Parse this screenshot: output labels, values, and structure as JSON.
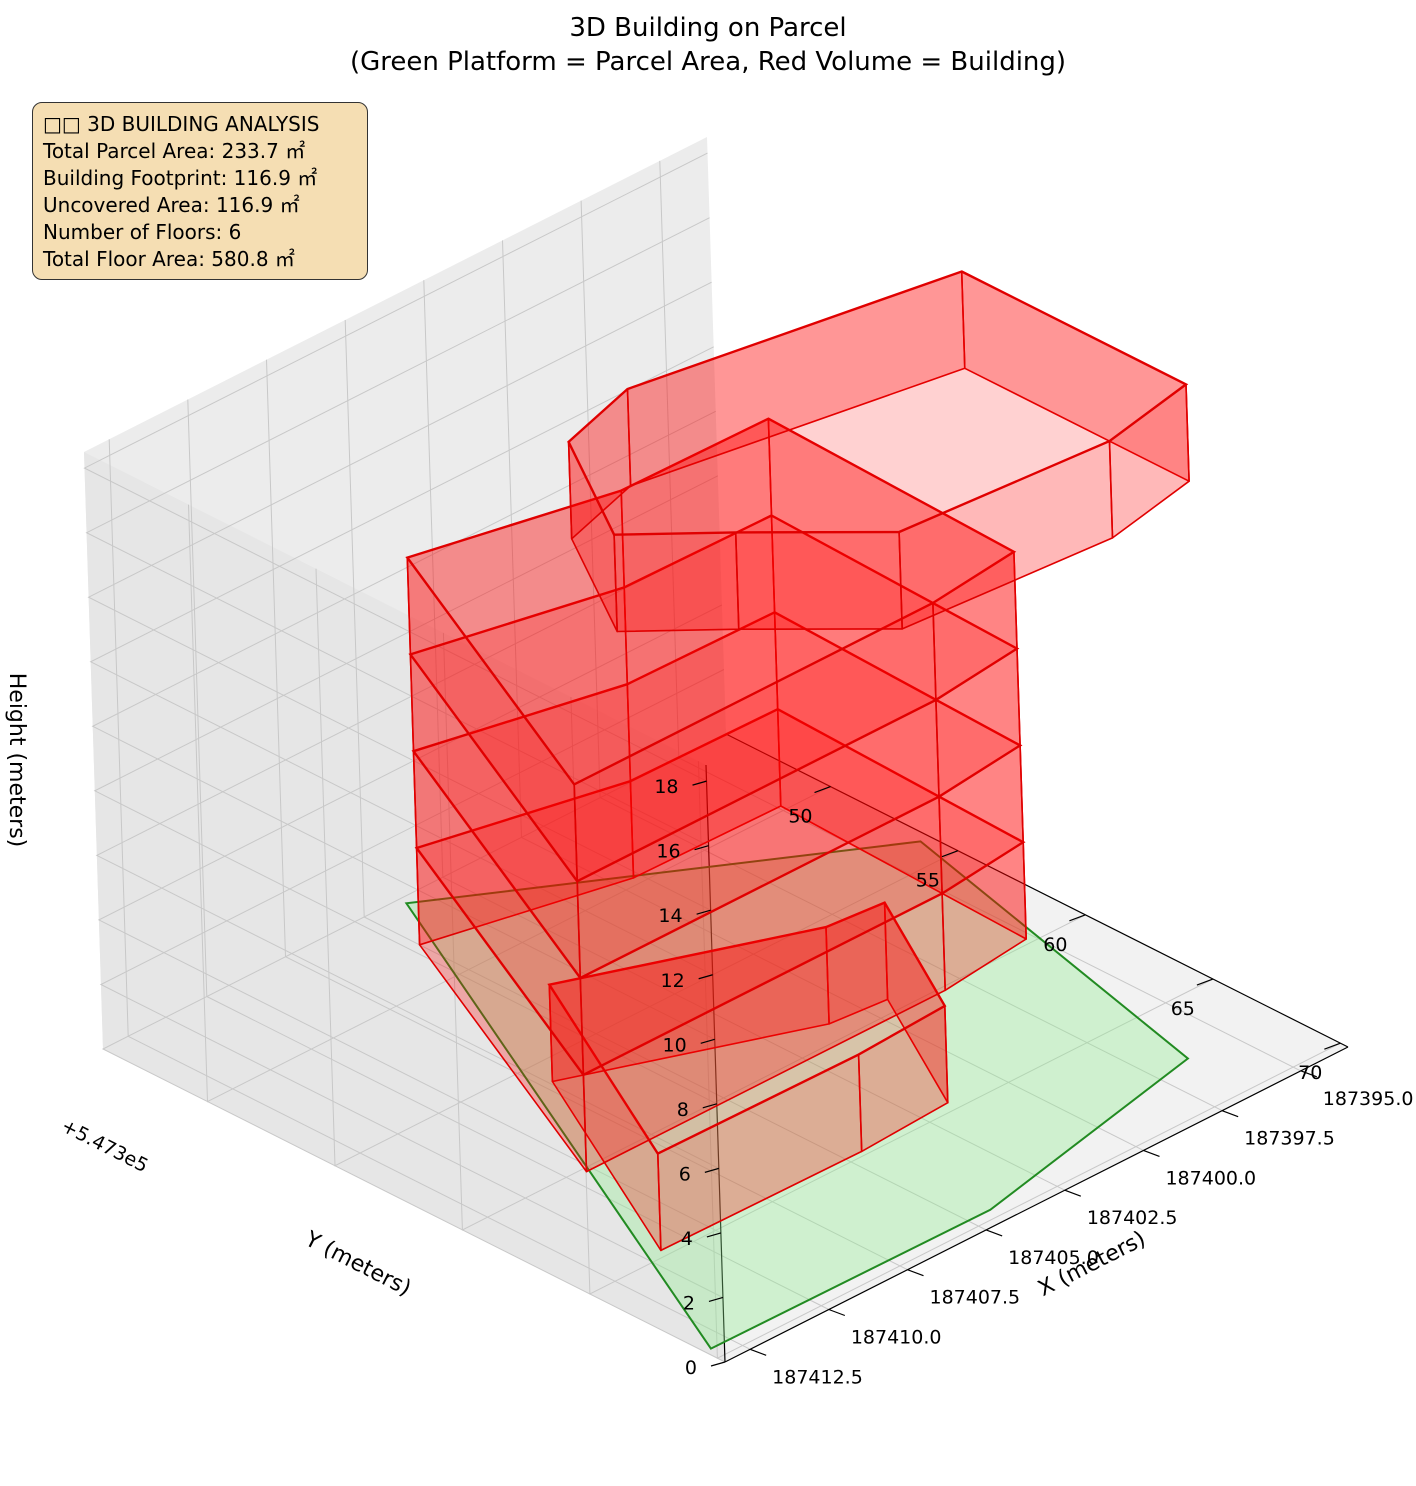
{
  "title_lines": [
    "3D Building on Parcel",
    "(Green Platform = Parcel Area, Red Volume = Building)"
  ],
  "info_box": {
    "lines": [
      "□□ 3D BUILDING ANALYSIS",
      "Total Parcel Area: 233.7 ㎡",
      "Building Footprint: 116.9 ㎡",
      "Uncovered Area: 116.9 ㎡",
      "Number of Floors: 6",
      "Total Floor Area: 580.8 ㎡"
    ]
  },
  "chart_data": {
    "type": "3d-polygon",
    "title": "3D Building on Parcel\n(Green Platform = Parcel Area, Red Volume = Building)",
    "xlabel": "X (meters)",
    "ylabel": "Y (meters)",
    "zlabel": "Height (meters)",
    "y_offset_label": "+5.473e5",
    "x_ticks": [
      "187395.0",
      "187397.5",
      "187400.0",
      "187402.5",
      "187405.0",
      "187407.5",
      "187410.0",
      "187412.5"
    ],
    "y_ticks": [
      "50",
      "55",
      "60",
      "65",
      "70"
    ],
    "z_ticks": [
      "0",
      "2",
      "4",
      "6",
      "8",
      "10",
      "12",
      "14",
      "16",
      "18"
    ],
    "xlim": [
      187393.5,
      187413.3
    ],
    "ylim": [
      547345.9,
      547370.3
    ],
    "zlim": [
      0,
      18.5
    ],
    "grid": true,
    "colors": {
      "parcel_fill": "#90ee90",
      "parcel_edge": "#228b22",
      "building_fill": "#ff0000",
      "building_edge": "#e00000"
    },
    "floors": 6,
    "floor_height": 3.0,
    "parcel_polygon": [
      [
        187393.8,
        547353.9
      ],
      [
        187396.4,
        547367.6
      ],
      [
        187404.3,
        547369.6
      ],
      [
        187413.1,
        547369.5
      ],
      [
        187403.9,
        547346.2
      ]
    ],
    "building_floor_footprints": [
      [
        [
          187399.3,
          547359.4
        ],
        [
          187401.6,
          547364.6
        ],
        [
          187404.5,
          547364.8
        ],
        [
          187410.8,
          547364.7
        ],
        [
          187407.2,
          547356.0
        ],
        [
          187401.0,
          547359.2
        ]
      ],
      [
        [
          187397.9,
          547353.6
        ],
        [
          187398.2,
          547363.6
        ],
        [
          187401.1,
          547364.0
        ],
        [
          187412.5,
          547364.0
        ],
        [
          187408.0,
          547351.9
        ],
        [
          187402.5,
          547353.5
        ]
      ],
      [
        [
          187397.9,
          547353.6
        ],
        [
          187398.2,
          547363.6
        ],
        [
          187401.1,
          547364.0
        ],
        [
          187412.5,
          547364.0
        ],
        [
          187408.0,
          547351.9
        ],
        [
          187402.5,
          547353.5
        ]
      ],
      [
        [
          187397.9,
          547353.6
        ],
        [
          187398.2,
          547363.6
        ],
        [
          187401.1,
          547364.0
        ],
        [
          187412.5,
          547364.0
        ],
        [
          187408.0,
          547351.9
        ],
        [
          187402.5,
          547353.5
        ]
      ],
      [
        [
          187397.9,
          547353.6
        ],
        [
          187398.2,
          547363.6
        ],
        [
          187401.1,
          547364.0
        ],
        [
          187412.5,
          547364.0
        ],
        [
          187408.0,
          547351.9
        ],
        [
          187402.5,
          547353.5
        ]
      ],
      [
        [
          187393.2,
          547355.5
        ],
        [
          187393.2,
          547364.3
        ],
        [
          187396.2,
          547365.0
        ],
        [
          187402.4,
          547364.4
        ],
        [
          187405.0,
          547361.2
        ],
        [
          187407.0,
          547358.9
        ],
        [
          187404.8,
          547354.4
        ],
        [
          187402.2,
          547353.5
        ]
      ]
    ]
  }
}
